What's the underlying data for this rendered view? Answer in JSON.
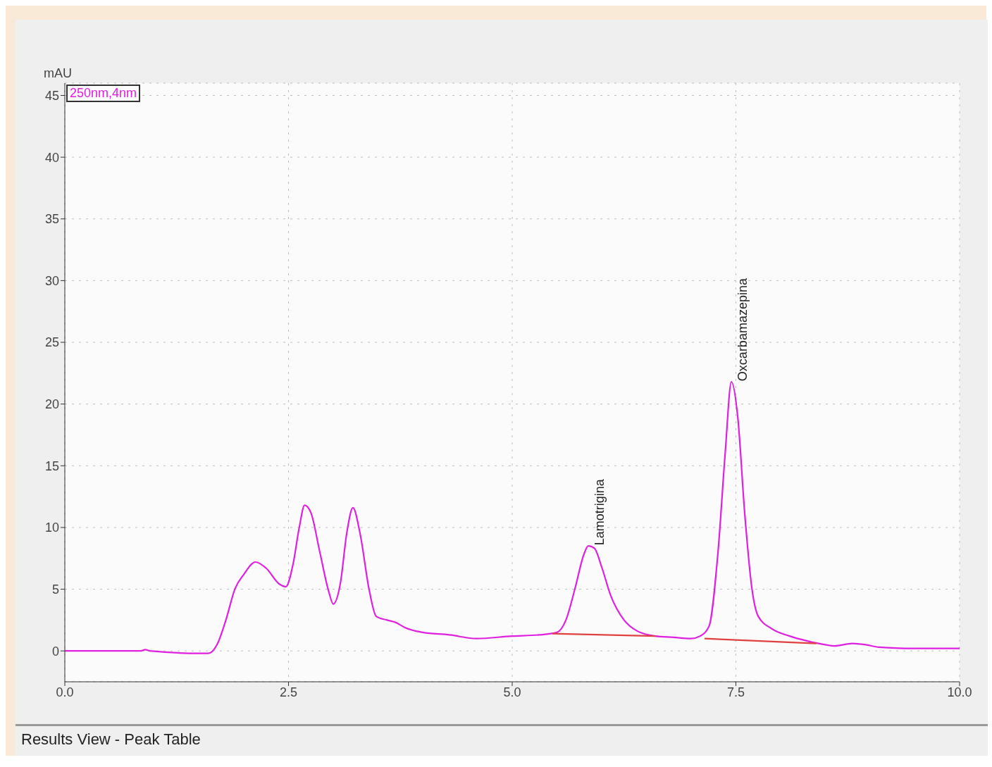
{
  "chart_data": {
    "type": "line",
    "ylabel": "mAU",
    "x": [
      0,
      0.85,
      0.9,
      0.95,
      1.5,
      1.6,
      1.7,
      1.8,
      1.9,
      2.0,
      2.13,
      2.25,
      2.4,
      2.47,
      2.55,
      2.62,
      2.68,
      2.75,
      2.85,
      2.95,
      3.0,
      3.08,
      3.15,
      3.22,
      3.3,
      3.4,
      3.48,
      3.6,
      3.7,
      3.8,
      4.0,
      4.3,
      4.6,
      5.0,
      5.3,
      5.5,
      5.6,
      5.7,
      5.8,
      5.85,
      5.92,
      6.0,
      6.1,
      6.25,
      6.4,
      6.6,
      6.8,
      7.0,
      7.1,
      7.2,
      7.3,
      7.38,
      7.45,
      7.52,
      7.6,
      7.68,
      7.75,
      7.9,
      8.1,
      8.3,
      8.5,
      8.6,
      8.8,
      8.95,
      9.1,
      9.5,
      10.0
    ],
    "series": [
      {
        "name": "250nm,4nm",
        "color": "#e020e0",
        "values": [
          0,
          0,
          0.1,
          0,
          -0.2,
          -0.2,
          0.5,
          2.5,
          5,
          6.2,
          7.2,
          6.7,
          5.4,
          5.2,
          7,
          10,
          11.8,
          11.2,
          8,
          4.8,
          3.8,
          5.5,
          9.5,
          11.6,
          9.5,
          5,
          2.8,
          2.5,
          2.3,
          1.9,
          1.5,
          1.3,
          1.0,
          1.2,
          1.3,
          1.5,
          2.5,
          5,
          7.8,
          8.5,
          8.3,
          6.8,
          4.5,
          2.5,
          1.6,
          1.2,
          1.1,
          1.0,
          1.2,
          2,
          8,
          16,
          21.8,
          19,
          11,
          5,
          2.8,
          1.8,
          1.2,
          0.8,
          0.5,
          0.4,
          0.6,
          0.5,
          0.3,
          0.2,
          0.2
        ]
      },
      {
        "color": "#e04040",
        "x": [
          5.45,
          6.6
        ],
        "values": [
          1.4,
          1.2
        ]
      },
      {
        "color": "#e04040",
        "x": [
          7.15,
          8.4
        ],
        "values": [
          1.0,
          0.6
        ]
      }
    ],
    "xlim": [
      0,
      10
    ],
    "xticks": [
      {
        "value": 0,
        "label": "0.0"
      },
      {
        "value": 2.5,
        "label": "2.5"
      },
      {
        "value": 5,
        "label": "5.0"
      },
      {
        "value": 7.5,
        "label": "7.5"
      },
      {
        "value": 10,
        "label": "10.0"
      }
    ],
    "ylim": [
      -2.5,
      46
    ],
    "yticks": [
      0,
      5,
      10,
      15,
      20,
      25,
      30,
      35,
      40,
      45
    ],
    "grid": true,
    "legend": "top left",
    "annotations": [
      {
        "text": "Lamotrigina",
        "x": 5.85,
        "y": 8.5
      },
      {
        "text": "Oxcarbamazepina",
        "x": 7.45,
        "y": 21.8
      },
      "Results View - Peak Table"
    ]
  }
}
